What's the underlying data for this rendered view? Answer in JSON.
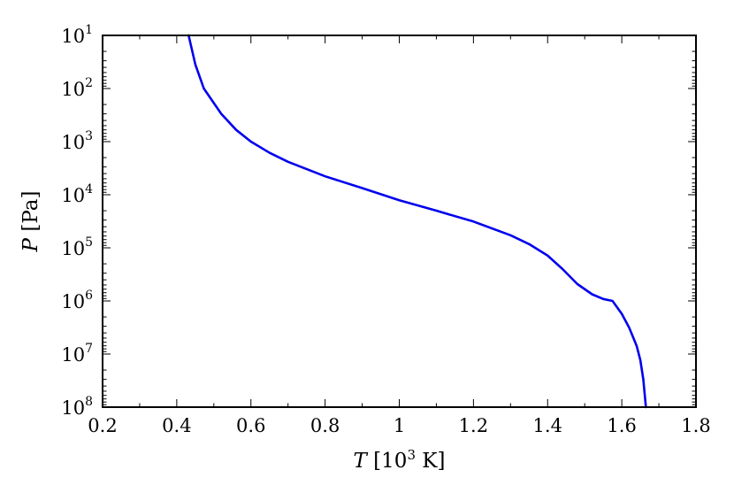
{
  "chart_data": {
    "type": "line",
    "title": "",
    "xlabel": {
      "var": "T",
      "pre": " [10",
      "sup": "3",
      "post": " K]"
    },
    "ylabel": {
      "var": "P",
      "rest": " [Pa]"
    },
    "xlim": [
      0.2,
      1.8
    ],
    "ylim": [
      100000000,
      10
    ],
    "y_scale": "log",
    "y_inverted": true,
    "grid": false,
    "x_ticks": [
      {
        "value": 0.2,
        "label": "0.2"
      },
      {
        "value": 0.4,
        "label": "0.4"
      },
      {
        "value": 0.6,
        "label": "0.6"
      },
      {
        "value": 0.8,
        "label": "0.8"
      },
      {
        "value": 1.0,
        "label": "1"
      },
      {
        "value": 1.2,
        "label": "1.2"
      },
      {
        "value": 1.4,
        "label": "1.4"
      },
      {
        "value": 1.6,
        "label": "1.6"
      },
      {
        "value": 1.8,
        "label": "1.8"
      }
    ],
    "y_ticks": [
      {
        "value": 10,
        "base": "10",
        "exp": "1"
      },
      {
        "value": 100,
        "base": "10",
        "exp": "2"
      },
      {
        "value": 1000,
        "base": "10",
        "exp": "3"
      },
      {
        "value": 10000,
        "base": "10",
        "exp": "4"
      },
      {
        "value": 100000,
        "base": "10",
        "exp": "5"
      },
      {
        "value": 1000000,
        "base": "10",
        "exp": "6"
      },
      {
        "value": 10000000,
        "base": "10",
        "exp": "7"
      },
      {
        "value": 100000000,
        "base": "10",
        "exp": "8"
      }
    ],
    "series": [
      {
        "color": "#0000ee",
        "x": [
          0.432,
          0.45,
          0.473,
          0.52,
          0.56,
          0.6,
          0.65,
          0.7,
          0.8,
          0.9,
          1.0,
          1.1,
          1.2,
          1.3,
          1.35,
          1.4,
          1.44,
          1.48,
          1.52,
          1.55,
          1.575,
          1.6,
          1.62,
          1.64,
          1.65,
          1.658,
          1.665
        ],
        "y": [
          10,
          35,
          100,
          300,
          600,
          1000,
          1620,
          2400,
          4500,
          7500,
          12700,
          20000,
          32000,
          58000,
          85000,
          140000,
          250000,
          480000,
          750000,
          920000,
          1000000,
          1750000,
          3200000,
          7000000,
          13000000,
          30000000,
          100000000
        ]
      }
    ]
  }
}
